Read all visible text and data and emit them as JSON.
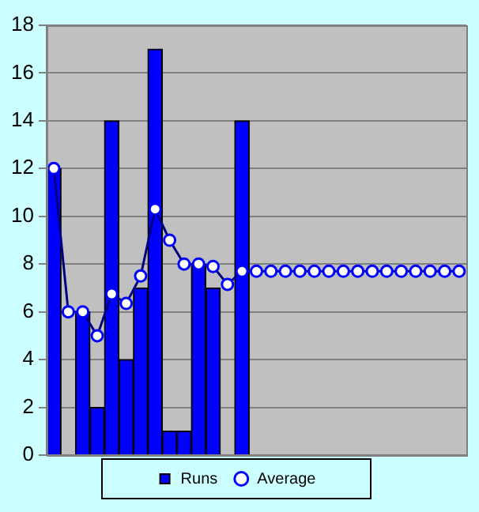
{
  "chart_data": {
    "type": "bar",
    "categories": [
      null,
      null,
      null,
      null,
      null,
      null,
      null,
      null,
      null,
      null,
      null,
      null,
      null,
      null,
      null,
      null,
      null,
      null,
      null,
      null,
      null,
      null,
      null,
      null,
      null,
      null,
      null,
      null,
      null
    ],
    "series": [
      {
        "name": "Runs",
        "color": "#0000ff",
        "values": [
          12,
          null,
          6,
          2,
          14,
          4,
          7,
          17,
          1,
          1,
          8,
          7,
          null,
          14,
          null,
          null,
          null,
          null,
          null,
          null,
          null,
          null,
          null,
          null,
          null,
          null,
          null,
          null,
          null
        ]
      },
      {
        "name": "Average",
        "type": "line",
        "color": "#000080",
        "marker": "circle",
        "values": [
          12,
          6,
          6,
          5,
          6.75,
          6.35,
          7.5,
          10.3,
          9,
          8,
          8,
          7.9,
          7.15,
          7.7,
          7.7,
          7.7,
          7.7,
          7.7,
          7.7,
          7.7,
          7.7,
          7.7,
          7.7,
          7.7,
          7.7,
          7.7,
          7.7,
          7.7,
          7.7
        ]
      }
    ],
    "ylim": [
      0,
      18
    ],
    "yticks": [
      0,
      2,
      4,
      6,
      8,
      10,
      12,
      14,
      16,
      18
    ],
    "grid": "y",
    "legend": "bottom",
    "tick_labels": "y"
  }
}
